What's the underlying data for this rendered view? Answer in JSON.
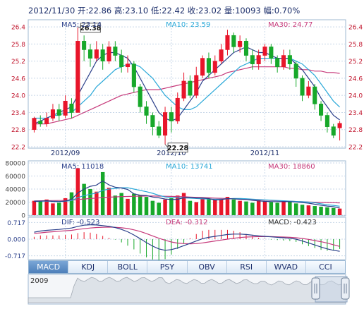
{
  "header": {
    "text": "2012/11/30 开:22.86 高:23.10 低:22.42 收:23.02 量:10093 幅:0.70%"
  },
  "legend": {
    "price": [
      {
        "label": "MA5: 23.14",
        "color": "#2a3f8a"
      },
      {
        "label": "MA10: 23.59",
        "color": "#2aa8d8"
      },
      {
        "label": "MA30: 24.77",
        "color": "#c6397a"
      }
    ],
    "volume": [
      {
        "label": "MA5: 11018",
        "color": "#2a3f8a"
      },
      {
        "label": "MA10: 13741",
        "color": "#2aa8d8"
      },
      {
        "label": "MA30: 18860",
        "color": "#c6397a"
      }
    ],
    "macd": [
      {
        "label": "DIF: -0.523",
        "color": "#2a3f8a"
      },
      {
        "label": "DEA: -0.312",
        "color": "#c6397a"
      },
      {
        "label": "MACD: -0.423",
        "color": "#333333"
      }
    ]
  },
  "tabs": [
    {
      "label": "MACD",
      "active": true
    },
    {
      "label": "KDJ",
      "active": false
    },
    {
      "label": "BOLL",
      "active": false
    },
    {
      "label": "PSY",
      "active": false
    },
    {
      "label": "OBV",
      "active": false
    },
    {
      "label": "RSI",
      "active": false
    },
    {
      "label": "WVAD",
      "active": false
    },
    {
      "label": "CCI",
      "active": false
    }
  ],
  "overview": {
    "year_label": "2009"
  },
  "colors": {
    "up": "#e8152a",
    "down": "#17a82a",
    "grid": "#c8d7e8",
    "axis_text": "#c0132b",
    "vol_axis_text": "#444444"
  },
  "chart_data": [
    {
      "type": "candlestick",
      "name": "price",
      "yticks": [
        22.2,
        22.8,
        23.4,
        24.0,
        24.6,
        25.2,
        25.8,
        26.4
      ],
      "ylim": [
        22.2,
        26.6
      ],
      "xtick_labels": [
        {
          "label": "2012/09",
          "index": 5
        },
        {
          "label": "2012/10",
          "index": 22
        },
        {
          "label": "2012/11",
          "index": 37
        }
      ],
      "annotations": [
        {
          "label": "26.38",
          "index": 7,
          "value": 26.38
        },
        {
          "label": "22.28",
          "index": 21,
          "value": 22.28
        }
      ],
      "candles": [
        [
          22.8,
          23.2,
          22.7,
          23.25
        ],
        [
          23.1,
          23.0,
          22.9,
          23.3
        ],
        [
          23.0,
          23.2,
          22.9,
          23.4
        ],
        [
          23.2,
          23.5,
          23.1,
          23.7
        ],
        [
          23.5,
          23.3,
          23.1,
          23.7
        ],
        [
          23.3,
          23.8,
          23.2,
          24.0
        ],
        [
          23.7,
          23.4,
          23.2,
          23.9
        ],
        [
          23.4,
          25.9,
          23.4,
          26.38
        ],
        [
          25.9,
          25.6,
          25.2,
          26.1
        ],
        [
          25.6,
          25.3,
          25.0,
          25.8
        ],
        [
          25.3,
          25.6,
          25.2,
          25.9
        ],
        [
          25.6,
          25.2,
          24.9,
          25.8
        ],
        [
          25.2,
          25.7,
          25.1,
          25.9
        ],
        [
          25.7,
          25.4,
          25.2,
          25.9
        ],
        [
          25.4,
          25.0,
          24.8,
          25.6
        ],
        [
          25.0,
          25.1,
          24.8,
          25.4
        ],
        [
          25.1,
          24.3,
          24.1,
          25.2
        ],
        [
          24.3,
          23.6,
          23.4,
          24.4
        ],
        [
          23.6,
          23.3,
          23.0,
          23.8
        ],
        [
          23.3,
          22.9,
          22.6,
          23.4
        ],
        [
          22.9,
          22.6,
          22.5,
          23.1
        ],
        [
          22.6,
          23.4,
          22.28,
          23.6
        ],
        [
          23.4,
          23.1,
          22.7,
          23.6
        ],
        [
          23.1,
          23.9,
          23.0,
          24.1
        ],
        [
          23.9,
          24.5,
          23.8,
          24.8
        ],
        [
          24.5,
          24.0,
          23.9,
          24.7
        ],
        [
          24.0,
          24.7,
          23.9,
          25.0
        ],
        [
          24.7,
          25.3,
          24.6,
          25.4
        ],
        [
          25.3,
          24.8,
          24.6,
          25.5
        ],
        [
          24.8,
          25.2,
          24.7,
          25.4
        ],
        [
          25.2,
          25.6,
          25.1,
          25.8
        ],
        [
          25.6,
          26.1,
          25.4,
          26.3
        ],
        [
          26.1,
          25.7,
          25.5,
          26.2
        ],
        [
          25.7,
          25.9,
          25.5,
          26.1
        ],
        [
          25.9,
          25.4,
          25.2,
          26.0
        ],
        [
          25.4,
          25.1,
          24.9,
          25.6
        ],
        [
          25.1,
          25.4,
          24.9,
          25.6
        ],
        [
          25.4,
          25.7,
          25.2,
          25.8
        ],
        [
          25.7,
          25.3,
          25.1,
          25.8
        ],
        [
          25.3,
          25.0,
          24.8,
          25.4
        ],
        [
          25.0,
          25.4,
          24.9,
          25.6
        ],
        [
          25.4,
          25.1,
          24.9,
          25.6
        ],
        [
          25.1,
          24.6,
          24.3,
          25.2
        ],
        [
          24.6,
          24.0,
          23.8,
          24.7
        ],
        [
          24.0,
          24.3,
          23.9,
          24.5
        ],
        [
          24.3,
          23.7,
          23.5,
          24.4
        ],
        [
          23.7,
          23.3,
          23.1,
          23.8
        ],
        [
          23.3,
          22.9,
          22.7,
          23.4
        ],
        [
          22.9,
          22.6,
          22.5,
          23.0
        ],
        [
          22.86,
          23.02,
          22.42,
          23.1
        ]
      ],
      "ma5": [
        23.0,
        23.1,
        23.2,
        23.3,
        23.4,
        23.5,
        23.6,
        24.0,
        24.4,
        24.8,
        25.2,
        25.4,
        25.5,
        25.5,
        25.4,
        25.3,
        25.0,
        24.6,
        24.2,
        23.8,
        23.4,
        23.2,
        23.1,
        23.2,
        23.5,
        23.8,
        24.1,
        24.5,
        24.7,
        24.9,
        25.1,
        25.3,
        25.5,
        25.6,
        25.7,
        25.6,
        25.5,
        25.5,
        25.4,
        25.3,
        25.3,
        25.3,
        25.1,
        24.9,
        24.6,
        24.3,
        23.9,
        23.6,
        23.3,
        23.14
      ],
      "ma10": [
        23.2,
        23.2,
        23.2,
        23.3,
        23.3,
        23.4,
        23.4,
        23.6,
        23.8,
        24.0,
        24.3,
        24.5,
        24.7,
        24.9,
        25.0,
        25.1,
        25.1,
        25.0,
        24.8,
        24.6,
        24.3,
        24.0,
        23.8,
        23.6,
        23.5,
        23.5,
        23.6,
        23.8,
        24.0,
        24.2,
        24.4,
        24.6,
        24.8,
        25.0,
        25.1,
        25.2,
        25.3,
        25.3,
        25.3,
        25.3,
        25.3,
        25.3,
        25.2,
        25.1,
        24.9,
        24.7,
        24.4,
        24.1,
        23.8,
        23.59
      ],
      "ma30": [
        23.0,
        23.0,
        23.0,
        23.05,
        23.1,
        23.15,
        23.2,
        23.3,
        23.4,
        23.5,
        23.6,
        23.7,
        23.8,
        23.9,
        24.0,
        24.05,
        24.1,
        24.15,
        24.2,
        24.2,
        24.2,
        24.25,
        24.3,
        24.35,
        24.4,
        24.45,
        24.5,
        24.55,
        24.6,
        24.65,
        24.7,
        24.8,
        24.85,
        24.9,
        24.95,
        25.0,
        25.0,
        25.0,
        25.0,
        25.0,
        25.0,
        24.95,
        24.95,
        24.9,
        24.9,
        24.85,
        24.85,
        24.8,
        24.8,
        24.77
      ]
    },
    {
      "type": "bar",
      "name": "volume",
      "yticks": [
        0,
        20000,
        40000,
        60000,
        80000
      ],
      "ylim": [
        0,
        80000
      ],
      "values": [
        22000,
        21000,
        24000,
        18000,
        19000,
        26000,
        35000,
        72000,
        48000,
        40000,
        36000,
        66000,
        42000,
        30000,
        34000,
        25000,
        33000,
        31000,
        28000,
        22000,
        19000,
        24000,
        26000,
        30000,
        34000,
        22000,
        20000,
        26000,
        25000,
        23000,
        25000,
        28000,
        24000,
        22000,
        21000,
        19000,
        23000,
        21000,
        20000,
        19000,
        22000,
        21000,
        18000,
        16000,
        15000,
        14000,
        13000,
        12000,
        11000,
        10093
      ],
      "up": [
        true,
        false,
        true,
        true,
        false,
        true,
        false,
        true,
        false,
        false,
        true,
        false,
        true,
        false,
        false,
        true,
        false,
        false,
        false,
        false,
        false,
        true,
        false,
        true,
        true,
        false,
        true,
        true,
        false,
        true,
        true,
        true,
        false,
        true,
        false,
        false,
        true,
        true,
        false,
        false,
        true,
        false,
        false,
        false,
        true,
        false,
        false,
        false,
        false,
        true
      ],
      "ma5": [
        21000,
        21500,
        22000,
        21000,
        20800,
        21600,
        24400,
        34000,
        40000,
        44200,
        46200,
        52400,
        46400,
        42800,
        41600,
        39400,
        32800,
        30600,
        30200,
        27800,
        26600,
        24800,
        24000,
        24200,
        26600,
        27200,
        26400,
        26400,
        25400,
        23200,
        23800,
        25400,
        25000,
        24400,
        24000,
        22800,
        21800,
        21200,
        20800,
        20800,
        21000,
        20600,
        20200,
        19200,
        18400,
        16800,
        15200,
        14000,
        13000,
        11018
      ],
      "ma10": [
        21500,
        21500,
        21600,
        21400,
        21000,
        21300,
        22400,
        27000,
        30000,
        32000,
        34000,
        38000,
        40000,
        41000,
        42000,
        42000,
        40000,
        38000,
        36000,
        33500,
        30500,
        28000,
        27000,
        26500,
        26500,
        26000,
        25500,
        25000,
        24800,
        24500,
        24500,
        25000,
        25500,
        25500,
        25200,
        24500,
        24000,
        23500,
        23000,
        22500,
        22000,
        21500,
        21000,
        20500,
        20000,
        19000,
        17500,
        16000,
        15000,
        13741
      ],
      "ma30": [
        22000,
        22000,
        22200,
        22300,
        22500,
        22600,
        23000,
        24000,
        24800,
        25500,
        26200,
        27000,
        27600,
        28000,
        28400,
        28700,
        29000,
        29200,
        29300,
        29300,
        29200,
        29000,
        28800,
        28500,
        28200,
        27800,
        27400,
        27000,
        26600,
        26200,
        25800,
        25400,
        25000,
        24600,
        24200,
        23800,
        23400,
        23000,
        22600,
        22200,
        21800,
        21400,
        21000,
        20600,
        20200,
        19900,
        19600,
        19300,
        19100,
        18860
      ]
    },
    {
      "type": "line",
      "name": "macd",
      "yticks": [
        -0.717,
        0.0,
        0.717
      ],
      "ylim": [
        -0.82,
        0.82
      ],
      "dif": [
        0.3,
        0.35,
        0.38,
        0.4,
        0.42,
        0.45,
        0.48,
        0.55,
        0.6,
        0.62,
        0.61,
        0.58,
        0.55,
        0.5,
        0.42,
        0.32,
        0.18,
        0.02,
        -0.15,
        -0.3,
        -0.42,
        -0.48,
        -0.45,
        -0.38,
        -0.28,
        -0.18,
        -0.08,
        0.02,
        0.08,
        0.12,
        0.16,
        0.2,
        0.22,
        0.22,
        0.2,
        0.17,
        0.14,
        0.12,
        0.1,
        0.08,
        0.06,
        0.04,
        0.0,
        -0.08,
        -0.16,
        -0.25,
        -0.34,
        -0.42,
        -0.48,
        -0.523
      ],
      "dea": [
        0.25,
        0.27,
        0.3,
        0.32,
        0.34,
        0.36,
        0.38,
        0.42,
        0.45,
        0.48,
        0.5,
        0.51,
        0.52,
        0.51,
        0.49,
        0.46,
        0.4,
        0.33,
        0.24,
        0.14,
        0.04,
        -0.05,
        -0.12,
        -0.17,
        -0.19,
        -0.2,
        -0.19,
        -0.16,
        -0.12,
        -0.08,
        -0.04,
        0.0,
        0.04,
        0.07,
        0.09,
        0.1,
        0.11,
        0.11,
        0.11,
        0.1,
        0.09,
        0.08,
        0.06,
        0.03,
        -0.01,
        -0.06,
        -0.11,
        -0.17,
        -0.24,
        -0.312
      ],
      "macd": [
        0.1,
        0.16,
        0.16,
        0.16,
        0.16,
        0.18,
        0.2,
        0.26,
        0.3,
        0.28,
        0.22,
        0.14,
        0.06,
        -0.02,
        -0.14,
        -0.28,
        -0.44,
        -0.62,
        -0.78,
        -0.88,
        -0.92,
        -0.86,
        -0.66,
        -0.42,
        -0.18,
        0.04,
        0.22,
        0.36,
        0.4,
        0.4,
        0.4,
        0.4,
        0.36,
        0.3,
        0.22,
        0.14,
        0.06,
        0.02,
        -0.02,
        -0.04,
        -0.06,
        -0.08,
        -0.12,
        -0.22,
        -0.3,
        -0.38,
        -0.46,
        -0.5,
        -0.48,
        -0.423
      ]
    }
  ]
}
